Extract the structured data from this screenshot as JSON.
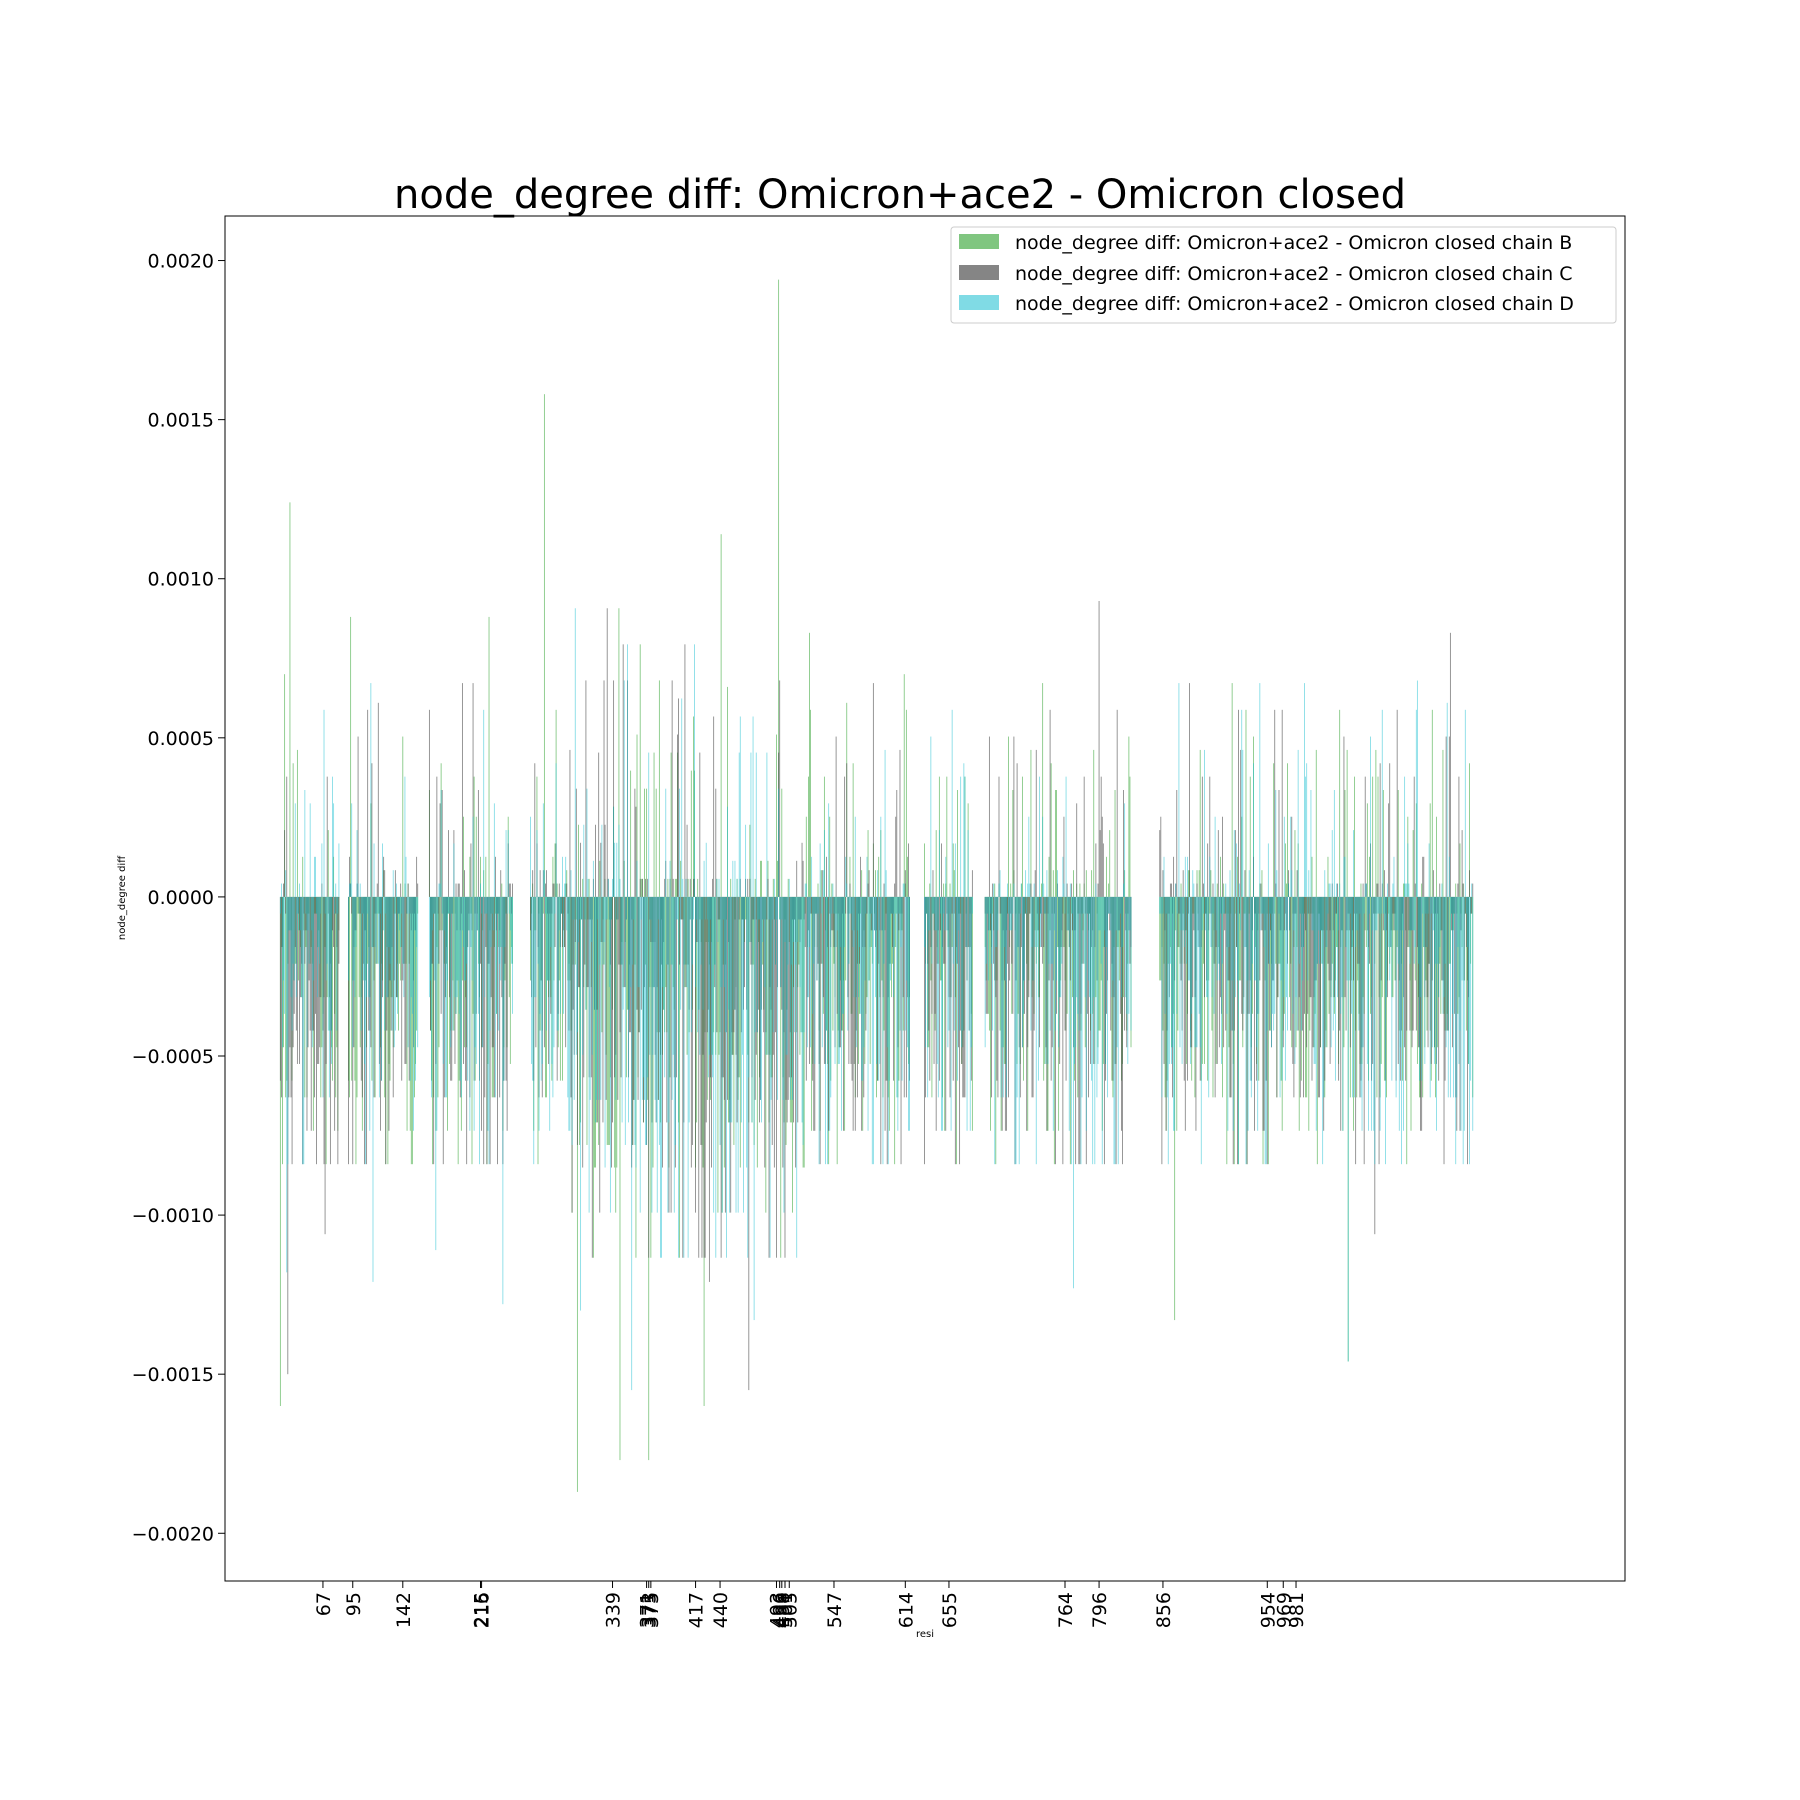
{
  "chart_data": {
    "type": "bar",
    "title": "node_degree diff: Omicron+ace2 - Omicron closed",
    "xlabel": "resi",
    "ylabel": "node_degree diff",
    "ylim": [
      -0.00215,
      0.00214
    ],
    "xlim": [
      -25,
      1290
    ],
    "yticks": [
      0.002,
      0.0015,
      0.001,
      0.0005,
      0.0,
      -0.0005,
      -0.001,
      -0.0015,
      -0.002
    ],
    "ytick_labels": [
      "0.0020",
      "0.0015",
      "0.0010",
      "0.0005",
      "0.0000",
      "−0.0005",
      "−0.0010",
      "−0.0015",
      "−0.0020"
    ],
    "xticks": [
      67,
      95,
      142,
      215,
      216,
      339,
      371,
      373,
      375,
      417,
      440,
      493,
      496,
      498,
      501,
      505,
      547,
      614,
      655,
      764,
      796,
      856,
      954,
      969,
      981
    ],
    "xtick_labels": [
      "67",
      "95",
      "142",
      "215",
      "216",
      "339",
      "371",
      "373",
      "375",
      "417",
      "440",
      "493",
      "496",
      "498",
      "501",
      "505",
      "547",
      "614",
      "655",
      "764",
      "796",
      "856",
      "954",
      "969",
      "981"
    ],
    "grid": false,
    "legend_position": "top-right",
    "series": [
      {
        "name": "node_degree diff: Omicron+ace2 - Omicron closed chain B",
        "color": "#2ca02c",
        "alpha": 0.6
      },
      {
        "name": "node_degree diff: Omicron+ace2 - Omicron closed chain C",
        "color": "#444444",
        "alpha": 0.65
      },
      {
        "name": "node_degree diff: Omicron+ace2 - Omicron closed chain D",
        "color": "#17becf",
        "alpha": 0.55
      }
    ],
    "residue_ranges": [
      [
        27,
        82
      ],
      [
        91,
        156
      ],
      [
        167,
        245
      ],
      [
        262,
        618
      ],
      [
        632,
        677
      ],
      [
        689,
        826
      ],
      [
        853,
        1147
      ]
    ],
    "peaks": {
      "chain_B": [
        [
          27,
          -0.0016
        ],
        [
          31,
          0.0007
        ],
        [
          36,
          0.00124
        ],
        [
          93,
          0.00088
        ],
        [
          164,
          0.00087
        ],
        [
          223,
          0.00088
        ],
        [
          259,
          0.00073
        ],
        [
          275,
          0.00158
        ],
        [
          306,
          -0.00187
        ],
        [
          346,
          -0.00177
        ],
        [
          373,
          -0.00177
        ],
        [
          425,
          -0.0016
        ],
        [
          441,
          0.00114
        ],
        [
          447,
          0.00066
        ],
        [
          495,
          0.00194
        ],
        [
          524,
          0.00083
        ],
        [
          559,
          0.00061
        ],
        [
          613,
          0.0007
        ],
        [
          867,
          -0.00133
        ],
        [
          1030,
          -0.00146
        ]
      ],
      "chain_C": [
        [
          34,
          -0.0015
        ],
        [
          69,
          -0.00106
        ],
        [
          119,
          0.00061
        ],
        [
          430,
          -0.00121
        ],
        [
          467,
          -0.00155
        ],
        [
          796,
          0.00093
        ],
        [
          1055,
          -0.00106
        ],
        [
          1126,
          0.00083
        ]
      ],
      "chain_D": [
        [
          33,
          -0.00118
        ],
        [
          114,
          -0.00121
        ],
        [
          173,
          -0.00111
        ],
        [
          236,
          -0.00128
        ],
        [
          309,
          -0.0013
        ],
        [
          357,
          -0.00155
        ],
        [
          472,
          -0.00133
        ],
        [
          772,
          -0.00123
        ],
        [
          850,
          0.00075
        ],
        [
          1030,
          -0.00146
        ],
        [
          1095,
          0.00068
        ],
        [
          1123,
          0.00061
        ]
      ]
    }
  }
}
